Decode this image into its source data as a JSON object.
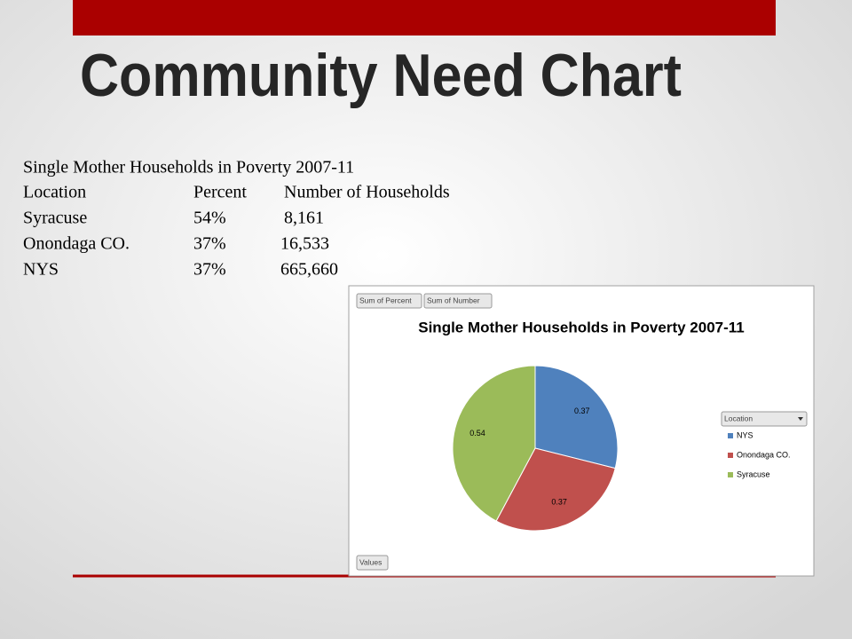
{
  "title": "Community Need Chart",
  "table": {
    "caption": "Single Mother Households in Poverty 2007-11",
    "header": [
      "Location",
      "Percent",
      "Number of Households"
    ],
    "rows": [
      [
        "Syracuse",
        "54%",
        "8,161"
      ],
      [
        "Onondaga CO.",
        "37%",
        "16,533"
      ],
      [
        "NYS",
        "37%",
        "665,660"
      ]
    ]
  },
  "pivot": {
    "buttons": [
      "Sum of Percent",
      "Sum of Number"
    ],
    "values_button": "Values",
    "legend_field": "Location"
  },
  "chart_data": {
    "type": "pie",
    "title": "Single Mother Households in Poverty 2007-11",
    "categories": [
      "NYS",
      "Onondaga CO.",
      "Syracuse"
    ],
    "values": [
      0.37,
      0.37,
      0.54
    ],
    "colors": [
      "#4f81bd",
      "#c0504d",
      "#9bbb59"
    ],
    "legend": "right"
  }
}
